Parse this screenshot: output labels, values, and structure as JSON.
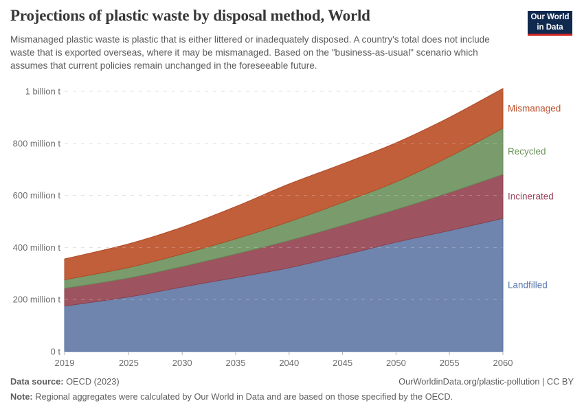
{
  "header": {
    "title": "Projections of plastic waste by disposal method, World",
    "subtitle": "Mismanaged plastic waste is plastic that is either littered or inadequately disposed. A country's total does not include waste that is exported overseas, where it may be mismanaged. Based on the \"business-as-usual\" scenario which assumes that current policies remain unchanged in the foreseeable future.",
    "logo": {
      "line1": "Our World",
      "line2": "in Data",
      "bg_color": "#10294f",
      "accent_color": "#cf2524"
    }
  },
  "chart_data": {
    "type": "area",
    "stacked": true,
    "title": "Projections of plastic waste by disposal method, World",
    "xlabel": "",
    "ylabel": "",
    "unit_suffix": "t",
    "grid": "dashed-horizontal",
    "legend_position": "right-inline",
    "x": [
      2019,
      2025,
      2030,
      2035,
      2040,
      2045,
      2050,
      2055,
      2060
    ],
    "xlim": [
      2019,
      2060
    ],
    "ylim": [
      0,
      1050
    ],
    "series": [
      {
        "name": "Landfilled",
        "fill": "#6f85ad",
        "stroke": "#566f9d",
        "label_color": "#5878ab",
        "values": [
          175,
          210,
          248,
          284,
          322,
          370,
          420,
          465,
          512
        ]
      },
      {
        "name": "Incinerated",
        "fill": "#9e5460",
        "stroke": "#8a414f",
        "label_color": "#9d4259",
        "values": [
          68,
          73,
          79,
          91,
          105,
          115,
          126,
          146,
          169
        ]
      },
      {
        "name": "Recycled",
        "fill": "#7a9c6c",
        "stroke": "#648a55",
        "label_color": "#6b9257",
        "values": [
          33,
          40,
          48,
          58,
          72,
          88,
          106,
          138,
          177
        ]
      },
      {
        "name": "Mismanaged",
        "fill": "#c05f3a",
        "stroke": "#ad4c28",
        "label_color": "#c14f2c",
        "values": [
          80,
          91,
          103,
          124,
          145,
          148,
          150,
          151,
          153
        ]
      }
    ],
    "yticks": [
      {
        "value": 0,
        "label": "0 t"
      },
      {
        "value": 200,
        "label": "200 million t"
      },
      {
        "value": 400,
        "label": "400 million t"
      },
      {
        "value": 600,
        "label": "600 million t"
      },
      {
        "value": 800,
        "label": "800 million t"
      },
      {
        "value": 1000,
        "label": "1 billion t"
      }
    ],
    "xticks": [
      2019,
      2025,
      2030,
      2035,
      2040,
      2045,
      2050,
      2055,
      2060
    ]
  },
  "footer": {
    "source_label": "Data source:",
    "source_value": " OECD (2023)",
    "note_label": "Note:",
    "note_value": " Regional aggregates were calculated by Our World in Data and are based on those specified by the OECD.",
    "link": "OurWorldinData.org/plastic-pollution | CC BY"
  }
}
